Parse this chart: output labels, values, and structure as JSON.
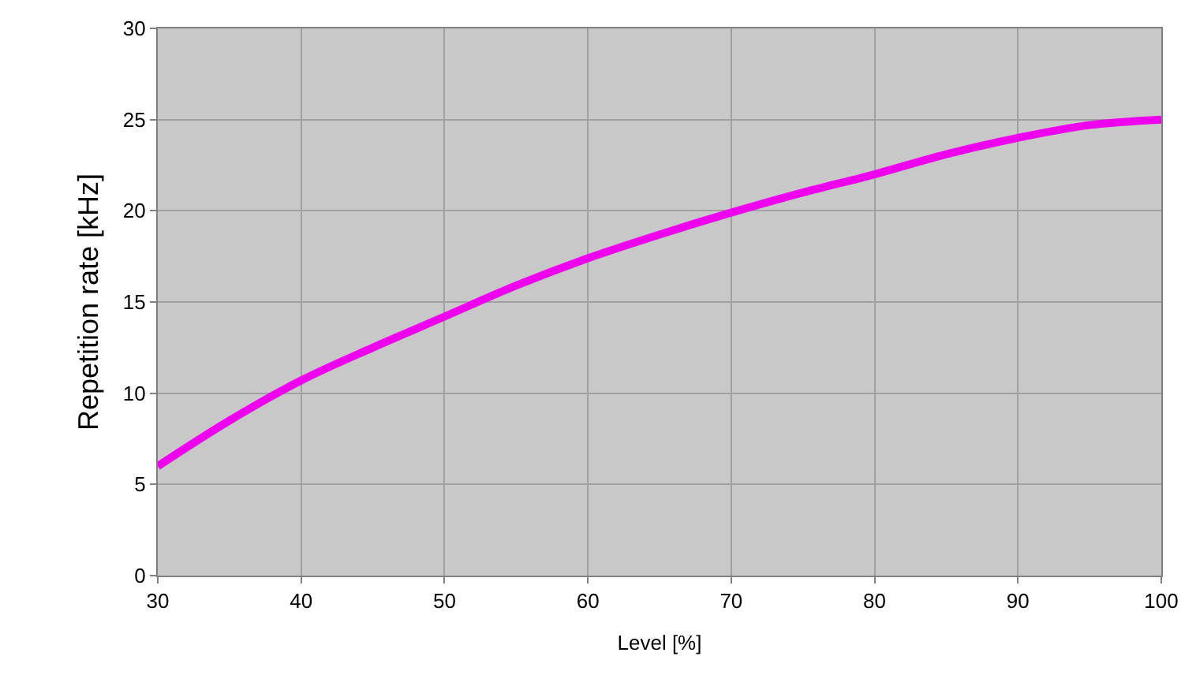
{
  "chart_data": {
    "type": "line",
    "xlabel": "Level [%]",
    "ylabel": "Repetition rate [kHz]",
    "x": [
      30,
      35,
      40,
      45,
      50,
      55,
      60,
      65,
      70,
      75,
      80,
      85,
      90,
      95,
      100
    ],
    "series": [
      {
        "color": "#ee00ee",
        "values": [
          6,
          8.5,
          10.7,
          12.5,
          14.2,
          15.9,
          17.4,
          18.7,
          19.9,
          21,
          22,
          23.1,
          24,
          24.7,
          25
        ]
      }
    ],
    "xlim": [
      30,
      100
    ],
    "xticks": [
      30,
      40,
      50,
      60,
      70,
      80,
      90,
      100
    ],
    "ylim": [
      0,
      30
    ],
    "yticks": [
      0,
      5,
      10,
      15,
      20,
      25,
      30
    ],
    "grid": true,
    "marker": "none",
    "line_style": "solid",
    "legend": false
  }
}
